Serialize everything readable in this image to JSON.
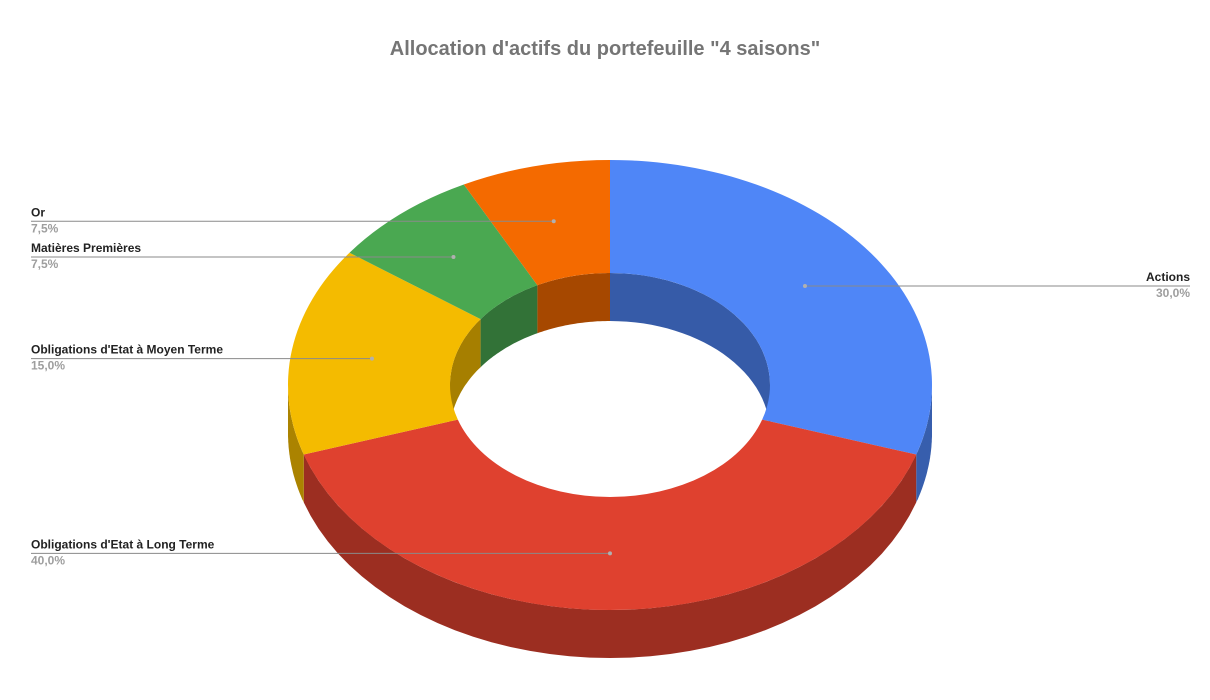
{
  "chart_data": {
    "type": "pie",
    "subtype": "3d-donut",
    "title": "Allocation d'actifs du portefeuille \"4 saisons\"",
    "series": [
      {
        "name": "Actions",
        "value": 30.0,
        "label": "30,0%",
        "color": "#4f86f7",
        "side": "right"
      },
      {
        "name": "Obligations d'Etat à Long Terme",
        "value": 40.0,
        "label": "40,0%",
        "color": "#df412f",
        "side": "left"
      },
      {
        "name": "Obligations d'Etat à Moyen Terme",
        "value": 15.0,
        "label": "15,0%",
        "color": "#f4bb00",
        "side": "left"
      },
      {
        "name": "Matières Premières",
        "value": 7.5,
        "label": "7,5%",
        "color": "#4aa851",
        "side": "left"
      },
      {
        "name": "Or",
        "value": 7.5,
        "label": "7,5%",
        "color": "#f46a00",
        "side": "left"
      }
    ],
    "legend": "labels-outside"
  }
}
